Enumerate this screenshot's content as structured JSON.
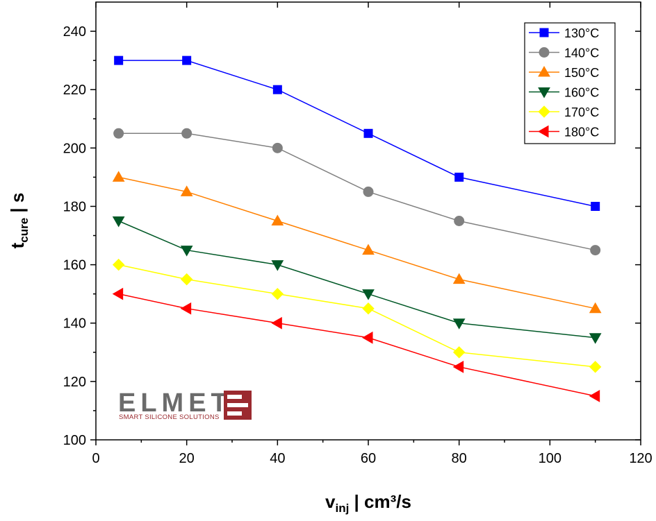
{
  "chart_data": {
    "type": "line",
    "xlabel": {
      "main": "v",
      "sub": "inj",
      "rest": " | cm³/s"
    },
    "ylabel": {
      "main": "t",
      "sub": "cure",
      "rest": " | s"
    },
    "xlim": [
      0,
      120
    ],
    "ylim": [
      100,
      250
    ],
    "xticks": [
      0,
      20,
      40,
      60,
      80,
      100,
      120
    ],
    "yticks": [
      100,
      120,
      140,
      160,
      180,
      200,
      220,
      240
    ],
    "x": [
      5,
      20,
      40,
      60,
      80,
      110
    ],
    "grid": false,
    "legend_position": "top-right",
    "series": [
      {
        "name": "130°C",
        "color": "#0000ff",
        "marker": "square",
        "values": [
          230,
          230,
          220,
          205,
          190,
          180
        ]
      },
      {
        "name": "140°C",
        "color": "#808080",
        "marker": "circle",
        "values": [
          205,
          205,
          200,
          185,
          175,
          165
        ]
      },
      {
        "name": "150°C",
        "color": "#ff8000",
        "marker": "triangle-up",
        "values": [
          190,
          185,
          175,
          165,
          155,
          145
        ]
      },
      {
        "name": "160°C",
        "color": "#005826",
        "marker": "triangle-down",
        "values": [
          175,
          165,
          160,
          150,
          140,
          135
        ]
      },
      {
        "name": "170°C",
        "color": "#ffff00",
        "marker": "diamond",
        "values": [
          160,
          155,
          150,
          145,
          130,
          125
        ]
      },
      {
        "name": "180°C",
        "color": "#ff0000",
        "marker": "triangle-left",
        "values": [
          150,
          145,
          140,
          135,
          125,
          115
        ]
      }
    ]
  },
  "logo": {
    "word": "ELMET",
    "tagline": "SMART SILICONE SOLUTIONS",
    "brand_color": "#9b2a2f"
  }
}
